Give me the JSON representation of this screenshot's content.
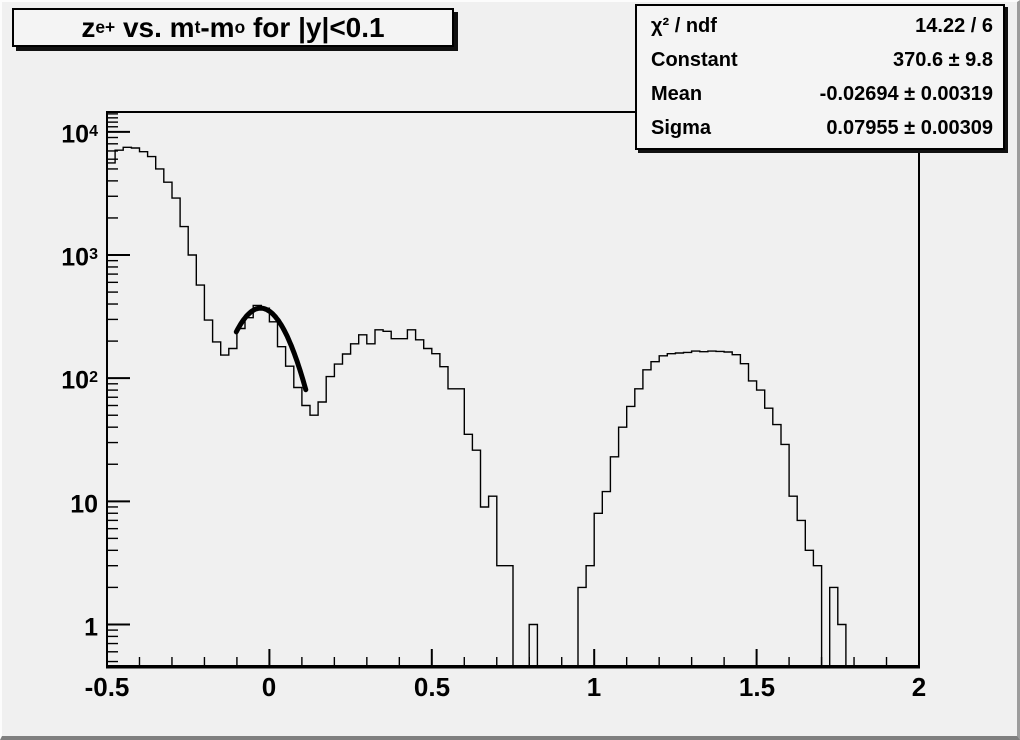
{
  "window": {
    "kind": "ROOT histogram canvas"
  },
  "title": {
    "plain": "z_e+ vs. m_t-m_o for |y|<0.1",
    "segments": [
      {
        "text": "z"
      },
      {
        "sub": "e+"
      },
      {
        "text": " vs. m"
      },
      {
        "sub": "t"
      },
      {
        "text": "-m"
      },
      {
        "sub": "o"
      },
      {
        "text": " for |y|<0.1"
      }
    ]
  },
  "stats": {
    "rows": [
      {
        "label": "χ² / ndf",
        "value": "14.22 / 6"
      },
      {
        "label": "Constant",
        "value": "370.6 ± 9.8"
      },
      {
        "label": "Mean",
        "value": "-0.02694 ± 0.00319"
      },
      {
        "label": "Sigma",
        "value": "0.07955 ± 0.00309"
      }
    ]
  },
  "chart_data": {
    "type": "bar",
    "subtype": "step-histogram",
    "title": "z_e+ vs. m_t-m_o for |y|<0.1",
    "xlabel": "",
    "ylabel": "",
    "xlim": [
      -0.5,
      2
    ],
    "ylim": [
      0.46,
      14500
    ],
    "yscale": "log",
    "grid": false,
    "legend": "none",
    "x_start": -0.5,
    "bin_width": 0.025,
    "n_bins": 100,
    "values": [
      5600,
      7100,
      7500,
      7400,
      6900,
      6300,
      5000,
      3900,
      2900,
      1700,
      1000,
      570,
      296,
      197,
      154,
      174,
      253,
      310,
      390,
      370,
      287,
      180,
      125,
      84,
      60,
      50,
      64,
      103,
      130,
      157,
      190,
      225,
      190,
      247,
      240,
      209,
      209,
      247,
      205,
      174,
      158,
      124,
      82,
      82,
      35,
      26,
      9,
      11,
      3,
      3,
      0,
      0,
      1,
      0,
      0,
      0,
      0,
      0,
      2,
      3,
      8,
      12,
      23,
      40,
      59,
      82,
      117,
      136,
      152,
      158,
      160,
      162,
      166,
      164,
      166,
      165,
      163,
      155,
      131,
      95,
      80,
      57,
      42,
      29,
      11,
      7,
      4,
      3,
      0,
      2,
      1,
      0,
      0,
      0,
      0,
      0,
      0,
      0,
      0,
      0
    ],
    "x_major_ticks": [
      -0.5,
      0,
      0.5,
      1,
      1.5,
      2
    ],
    "x_tick_labels": [
      "-0.5",
      "0",
      "0.5",
      "1",
      "1.5",
      "2"
    ],
    "x_minor_step": 0.1,
    "y_ticks": [
      {
        "value": 1,
        "base": "1",
        "exp": ""
      },
      {
        "value": 10,
        "base": "10",
        "exp": ""
      },
      {
        "value": 100,
        "base": "10",
        "exp": "2"
      },
      {
        "value": 1000,
        "base": "10",
        "exp": "3"
      },
      {
        "value": 10000,
        "base": "10",
        "exp": "4"
      }
    ],
    "fit": {
      "type": "gaussian",
      "constant": 370.6,
      "mean": -0.02694,
      "sigma": 0.07955,
      "chi2": 14.22,
      "ndf": 6,
      "draw_range": [
        -0.102,
        0.112
      ]
    },
    "colors": {
      "histogram_line": "#000000",
      "fit_line": "#000000",
      "frame": "#000000",
      "canvas_bg": "#f0f0f0",
      "pave_bg": "#f4f4f4"
    }
  }
}
